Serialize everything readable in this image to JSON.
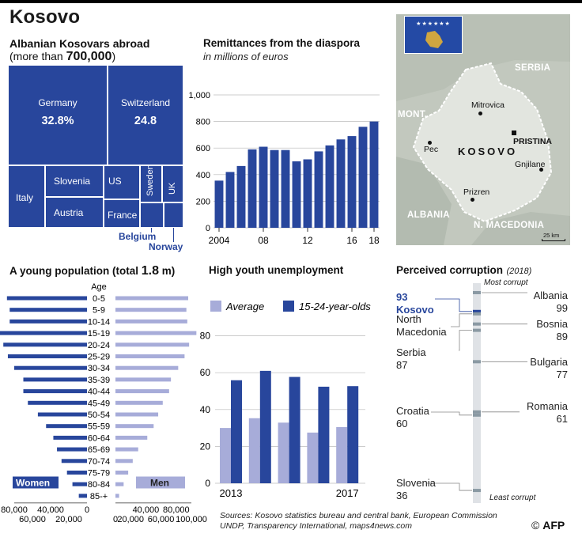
{
  "title": "Kosovo",
  "diaspora": {
    "title_line1": "Albanian Kosovars abroad",
    "title_line2_prefix": "(more than ",
    "title_line2_value": "700,000",
    "title_line2_suffix": ")",
    "countries": [
      {
        "name": "Germany",
        "share": "32.8%"
      },
      {
        "name": "Switzerland",
        "share": "24.8"
      },
      {
        "name": "Italy"
      },
      {
        "name": "Slovenia"
      },
      {
        "name": "Austria"
      },
      {
        "name": "US"
      },
      {
        "name": "France"
      },
      {
        "name": "Sweden"
      },
      {
        "name": "UK"
      },
      {
        "name": "Belgium"
      },
      {
        "name": "Norway"
      }
    ]
  },
  "remittances_title": "Remittances from the diaspora",
  "remittances_subtitle": "in millions of euros",
  "population_title_prefix": "A young population (total ",
  "population_title_value": "1.8",
  "population_title_suffix": " m)",
  "unemployment_title": "High youth unemployment",
  "corruption_title": "Perceived corruption",
  "corruption_year": "(2018)",
  "corruption_most": "Most corrupt",
  "corruption_least": "Least corrupt",
  "source_line1": "Sources: Kosovo statistics bureau and central bank, European Commission",
  "source_line2": "UNDP, Transparency International, maps4news.com",
  "logo": "AFP",
  "map": {
    "flag_stars": "★★★★★★",
    "neighbors": [
      "SERBIA",
      "MONT.",
      "ALBANIA",
      "N. MACEDONIA"
    ],
    "country_label": "KOSOVO",
    "cities": [
      "Mitrovica",
      "PRISTINA",
      "Pec",
      "Gnjilane",
      "Prizren"
    ],
    "scale": "25 km",
    "colors": {
      "land": "#c5cbc0",
      "kosovo": "#dfe2dc",
      "flag_blue": "#244aa5",
      "flag_gold": "#d0a640"
    }
  },
  "chart_data": [
    {
      "type": "treemap",
      "title": "Albanian Kosovars abroad (more than 700,000)",
      "items": [
        {
          "label": "Germany",
          "value": 32.8
        },
        {
          "label": "Switzerland",
          "value": 24.8
        },
        {
          "label": "Italy",
          "value": 8.5
        },
        {
          "label": "Slovenia",
          "value": 5.5
        },
        {
          "label": "Austria",
          "value": 5.5
        },
        {
          "label": "US",
          "value": 4.5
        },
        {
          "label": "France",
          "value": 4.5
        },
        {
          "label": "Sweden",
          "value": 3.5
        },
        {
          "label": "UK",
          "value": 2.8
        },
        {
          "label": "Belgium",
          "value": 2.6
        },
        {
          "label": "Norway",
          "value": 1.8
        }
      ]
    },
    {
      "type": "bar",
      "title": "Remittances from the diaspora",
      "subtitle": "in millions of euros",
      "x": [
        2004,
        2005,
        2006,
        2007,
        2008,
        2009,
        2010,
        2011,
        2012,
        2013,
        2014,
        2015,
        2016,
        2017,
        2018
      ],
      "values": [
        355,
        420,
        465,
        590,
        610,
        585,
        585,
        500,
        515,
        575,
        620,
        665,
        690,
        760,
        800
      ],
      "x_ticks": [
        "2004",
        "08",
        "12",
        "16",
        "18"
      ],
      "y_ticks": [
        "1,000",
        "800",
        "600",
        "400",
        "200",
        "0"
      ],
      "ylim": [
        0,
        1000
      ]
    },
    {
      "type": "bar",
      "orientation": "horizontal",
      "title": "A young population (total 1.8 m)",
      "axis_label": "Age",
      "categories": [
        "0-5",
        "5-9",
        "10-14",
        "15-19",
        "20-24",
        "25-29",
        "30-34",
        "35-39",
        "40-44",
        "45-49",
        "50-54",
        "55-59",
        "60-64",
        "65-69",
        "70-74",
        "75-79",
        "80-84",
        "85-+"
      ],
      "series": [
        {
          "name": "Women",
          "values": [
            88000,
            85000,
            85000,
            97000,
            92000,
            87000,
            80000,
            70000,
            70000,
            65000,
            54000,
            45000,
            37000,
            33000,
            28000,
            22000,
            16000,
            9000
          ]
        },
        {
          "name": "Men",
          "values": [
            80000,
            78000,
            79000,
            89000,
            81000,
            76000,
            69000,
            61000,
            59000,
            52000,
            47000,
            42000,
            35000,
            25000,
            19000,
            14000,
            9000,
            4000
          ]
        }
      ],
      "x_ticks_top_left": [
        "80,000",
        "40,000",
        "0"
      ],
      "x_ticks_bottom_left": [
        "60,000",
        "20,000"
      ],
      "x_ticks_top_right": [
        "40,000",
        "80,000"
      ],
      "x_ticks_bottom_right": [
        "0",
        "20,000",
        "60,000",
        "100,000"
      ]
    },
    {
      "type": "bar",
      "title": "High youth unemployment",
      "categories": [
        "2013",
        "2014",
        "2015",
        "2016",
        "2017"
      ],
      "x_ticks": [
        "2013",
        "2017"
      ],
      "series": [
        {
          "name": "Average",
          "values": [
            30,
            35.3,
            32.9,
            27.5,
            30.5
          ],
          "color": "#a7acd9"
        },
        {
          "name": "15-24-year-olds",
          "values": [
            55.9,
            61,
            57.7,
            52.4,
            52.7
          ],
          "color": "#28469c"
        }
      ],
      "y_ticks": [
        "80",
        "60",
        "40",
        "20",
        "0"
      ],
      "ylim": [
        0,
        85
      ]
    },
    {
      "type": "scale",
      "title": "Perceived corruption (2018)",
      "items": [
        {
          "label": "Kosovo",
          "value": 93,
          "highlight": true
        },
        {
          "label": "North Macedonia",
          "value": 93
        },
        {
          "label": "Serbia",
          "value": 87
        },
        {
          "label": "Croatia",
          "value": 60
        },
        {
          "label": "Slovenia",
          "value": 36
        },
        {
          "label": "Albania",
          "value": 99
        },
        {
          "label": "Bosnia",
          "value": 89
        },
        {
          "label": "Bulgaria",
          "value": 77
        },
        {
          "label": "Romania",
          "value": 61
        }
      ],
      "colors": {
        "track": "#dfe2e6",
        "marker": "#8a99a3",
        "highlight": "#28469c"
      }
    }
  ]
}
